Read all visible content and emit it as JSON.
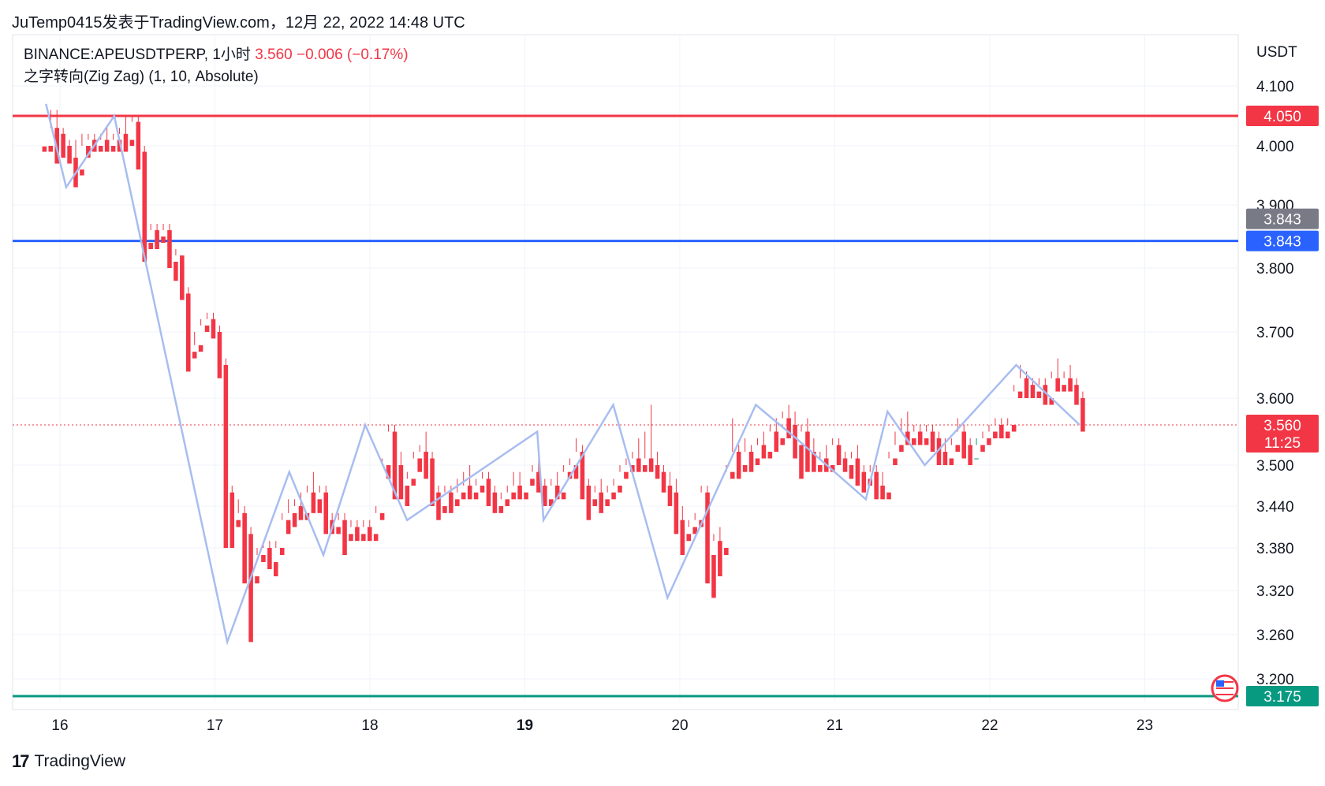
{
  "header": {
    "publisher": "JuTemp0415发表于TradingView.com，12月 22, 2022 14:48 UTC"
  },
  "legend": {
    "symbol": "BINANCE:APEUSDTPERP, 1小时",
    "price": "3.560",
    "change": "−0.006 (−0.17%)",
    "indicator": "之字转向(Zig Zag) (1, 10, Absolute)"
  },
  "footer": {
    "brand": "TradingView",
    "logo": "tradingview-logo-icon"
  },
  "colors": {
    "up": "#089981",
    "down": "#f23645",
    "zigzag": "#a8bdf0",
    "resistance": "#f23645",
    "support_blue": "#2962ff",
    "support_green": "#089981",
    "grid": "#f0f3fa"
  },
  "chart_data": {
    "type": "candlestick",
    "currency": "USDT",
    "x_labels": [
      "16",
      "17",
      "18",
      "19",
      "20",
      "21",
      "22",
      "23"
    ],
    "x_label_bold": "19",
    "y_ticks": [
      "4.100",
      "4.000",
      "3.900",
      "3.800",
      "3.700",
      "3.600",
      "3.500",
      "3.440",
      "3.380",
      "3.320",
      "3.260",
      "3.200"
    ],
    "y_scale": "log",
    "y_range": [
      3.175,
      4.15
    ],
    "horizontal_lines": [
      {
        "value": 4.05,
        "label": "4.050",
        "color": "#f23645"
      },
      {
        "value": 3.843,
        "label": "3.843",
        "color": "#2962ff"
      },
      {
        "value": 3.175,
        "label": "3.175",
        "color": "#089981"
      }
    ],
    "price_badges": [
      {
        "value": 3.843,
        "label": "3.843",
        "color": "#787b86"
      },
      {
        "value": 3.56,
        "label": "3.560",
        "countdown": "11:25",
        "color": "#f23645"
      }
    ],
    "current_price": 3.56,
    "zigzag": [
      [
        15.91,
        4.07
      ],
      [
        16.04,
        3.93
      ],
      [
        16.35,
        4.05
      ],
      [
        17.08,
        3.25
      ],
      [
        17.48,
        3.49
      ],
      [
        17.7,
        3.37
      ],
      [
        17.97,
        3.56
      ],
      [
        18.24,
        3.42
      ],
      [
        19.08,
        3.55
      ],
      [
        19.12,
        3.42
      ],
      [
        19.57,
        3.59
      ],
      [
        19.92,
        3.31
      ],
      [
        20.49,
        3.59
      ],
      [
        20.75,
        3.54
      ],
      [
        21.2,
        3.45
      ],
      [
        21.34,
        3.58
      ],
      [
        21.58,
        3.5
      ],
      [
        22.17,
        3.65
      ],
      [
        22.58,
        3.56
      ]
    ],
    "candles": [
      [
        3.999,
        4.0,
        4.0,
        3.99
      ],
      [
        4.0,
        4.06,
        4.03,
        3.99
      ],
      [
        4.03,
        4.06,
        4.02,
        3.97
      ],
      [
        4.02,
        4.03,
        4.0,
        3.98
      ],
      [
        4.0,
        4.01,
        3.98,
        3.97
      ],
      [
        3.98,
        4.01,
        3.96,
        3.93
      ],
      [
        3.96,
        4.02,
        4.0,
        3.95
      ],
      [
        4.0,
        4.02,
        4.01,
        3.98
      ],
      [
        4.01,
        4.02,
        4.0,
        3.99
      ],
      [
        4.0,
        4.02,
        4.01,
        3.99
      ],
      [
        4.01,
        4.03,
        4.0,
        3.99
      ],
      [
        4.0,
        4.02,
        4.01,
        3.99
      ],
      [
        4.01,
        4.03,
        4.02,
        3.99
      ],
      [
        4.02,
        4.05,
        4.01,
        3.99
      ],
      [
        4.01,
        4.05,
        4.04,
        4.0
      ],
      [
        4.04,
        4.05,
        3.99,
        3.96
      ],
      [
        3.99,
        4.0,
        3.84,
        3.81
      ],
      [
        3.84,
        3.87,
        3.86,
        3.83
      ],
      [
        3.86,
        3.87,
        3.85,
        3.83
      ],
      [
        3.85,
        3.87,
        3.86,
        3.84
      ],
      [
        3.86,
        3.87,
        3.81,
        3.8
      ],
      [
        3.81,
        3.83,
        3.82,
        3.78
      ],
      [
        3.82,
        3.82,
        3.76,
        3.75
      ],
      [
        3.76,
        3.77,
        3.67,
        3.64
      ],
      [
        3.67,
        3.7,
        3.68,
        3.66
      ],
      [
        3.68,
        3.72,
        3.71,
        3.67
      ],
      [
        3.71,
        3.73,
        3.72,
        3.7
      ],
      [
        3.72,
        3.73,
        3.7,
        3.69
      ],
      [
        3.7,
        3.71,
        3.65,
        3.63
      ],
      [
        3.65,
        3.66,
        3.46,
        3.38
      ],
      [
        3.46,
        3.47,
        3.42,
        3.38
      ],
      [
        3.42,
        3.45,
        3.43,
        3.41
      ],
      [
        3.43,
        3.44,
        3.4,
        3.33
      ],
      [
        3.4,
        3.41,
        3.34,
        3.25
      ],
      [
        3.34,
        3.38,
        3.37,
        3.33
      ],
      [
        3.37,
        3.39,
        3.38,
        3.36
      ],
      [
        3.38,
        3.39,
        3.36,
        3.35
      ],
      [
        3.36,
        3.39,
        3.38,
        3.34
      ],
      [
        3.38,
        3.43,
        3.42,
        3.37
      ],
      [
        3.42,
        3.45,
        3.43,
        3.4
      ],
      [
        3.43,
        3.45,
        3.44,
        3.41
      ],
      [
        3.44,
        3.46,
        3.43,
        3.42
      ],
      [
        3.43,
        3.47,
        3.46,
        3.42
      ],
      [
        3.46,
        3.49,
        3.45,
        3.43
      ],
      [
        3.45,
        3.47,
        3.46,
        3.43
      ],
      [
        3.46,
        3.47,
        3.42,
        3.4
      ],
      [
        3.42,
        3.43,
        3.41,
        3.4
      ],
      [
        3.41,
        3.43,
        3.42,
        3.4
      ],
      [
        3.42,
        3.43,
        3.4,
        3.37
      ],
      [
        3.4,
        3.42,
        3.41,
        3.39
      ],
      [
        3.41,
        3.42,
        3.4,
        3.39
      ],
      [
        3.4,
        3.42,
        3.41,
        3.39
      ],
      [
        3.41,
        3.42,
        3.4,
        3.39
      ],
      [
        3.4,
        3.44,
        3.43,
        3.39
      ],
      [
        3.43,
        3.51,
        3.5,
        3.42
      ],
      [
        3.5,
        3.56,
        3.55,
        3.48
      ],
      [
        3.55,
        3.56,
        3.5,
        3.45
      ],
      [
        3.5,
        3.52,
        3.47,
        3.45
      ],
      [
        3.47,
        3.49,
        3.48,
        3.44
      ],
      [
        3.48,
        3.52,
        3.51,
        3.47
      ],
      [
        3.51,
        3.53,
        3.52,
        3.49
      ],
      [
        3.52,
        3.55,
        3.51,
        3.48
      ],
      [
        3.51,
        3.52,
        3.46,
        3.44
      ],
      [
        3.46,
        3.47,
        3.44,
        3.42
      ],
      [
        3.44,
        3.47,
        3.46,
        3.43
      ],
      [
        3.46,
        3.47,
        3.45,
        3.43
      ],
      [
        3.45,
        3.48,
        3.46,
        3.44
      ],
      [
        3.46,
        3.49,
        3.47,
        3.45
      ],
      [
        3.47,
        3.5,
        3.46,
        3.45
      ],
      [
        3.46,
        3.48,
        3.47,
        3.45
      ],
      [
        3.47,
        3.49,
        3.48,
        3.46
      ],
      [
        3.48,
        3.49,
        3.46,
        3.44
      ],
      [
        3.46,
        3.47,
        3.44,
        3.43
      ],
      [
        3.44,
        3.46,
        3.45,
        3.43
      ],
      [
        3.45,
        3.47,
        3.46,
        3.44
      ],
      [
        3.46,
        3.49,
        3.47,
        3.45
      ],
      [
        3.47,
        3.49,
        3.46,
        3.45
      ],
      [
        3.46,
        3.48,
        3.48,
        3.45
      ],
      [
        3.48,
        3.5,
        3.49,
        3.47
      ],
      [
        3.49,
        3.51,
        3.47,
        3.46
      ],
      [
        3.47,
        3.48,
        3.45,
        3.44
      ],
      [
        3.45,
        3.48,
        3.47,
        3.44
      ],
      [
        3.47,
        3.49,
        3.46,
        3.45
      ],
      [
        3.46,
        3.5,
        3.49,
        3.45
      ],
      [
        3.49,
        3.51,
        3.5,
        3.48
      ],
      [
        3.5,
        3.54,
        3.52,
        3.48
      ],
      [
        3.52,
        3.53,
        3.47,
        3.45
      ],
      [
        3.47,
        3.48,
        3.45,
        3.42
      ],
      [
        3.45,
        3.47,
        3.46,
        3.44
      ],
      [
        3.46,
        3.48,
        3.45,
        3.43
      ],
      [
        3.45,
        3.47,
        3.46,
        3.44
      ],
      [
        3.46,
        3.48,
        3.47,
        3.45
      ],
      [
        3.47,
        3.5,
        3.49,
        3.46
      ],
      [
        3.49,
        3.51,
        3.5,
        3.48
      ],
      [
        3.5,
        3.52,
        3.51,
        3.49
      ],
      [
        3.51,
        3.54,
        3.5,
        3.49
      ],
      [
        3.5,
        3.55,
        3.51,
        3.49
      ],
      [
        3.51,
        3.59,
        3.5,
        3.49
      ],
      [
        3.5,
        3.52,
        3.49,
        3.48
      ],
      [
        3.49,
        3.5,
        3.47,
        3.46
      ],
      [
        3.47,
        3.49,
        3.46,
        3.44
      ],
      [
        3.46,
        3.48,
        3.42,
        3.4
      ],
      [
        3.42,
        3.44,
        3.4,
        3.37
      ],
      [
        3.4,
        3.42,
        3.41,
        3.39
      ],
      [
        3.41,
        3.43,
        3.42,
        3.4
      ],
      [
        3.42,
        3.47,
        3.46,
        3.41
      ],
      [
        3.46,
        3.47,
        3.37,
        3.33
      ],
      [
        3.37,
        3.4,
        3.39,
        3.31
      ],
      [
        3.39,
        3.41,
        3.38,
        3.34
      ],
      [
        3.38,
        3.5,
        3.49,
        3.37
      ],
      [
        3.49,
        3.57,
        3.52,
        3.48
      ],
      [
        3.52,
        3.53,
        3.5,
        3.48
      ],
      [
        3.5,
        3.54,
        3.52,
        3.49
      ],
      [
        3.52,
        3.53,
        3.51,
        3.49
      ],
      [
        3.51,
        3.54,
        3.53,
        3.5
      ],
      [
        3.53,
        3.55,
        3.52,
        3.51
      ],
      [
        3.52,
        3.56,
        3.55,
        3.51
      ],
      [
        3.55,
        3.57,
        3.54,
        3.52
      ],
      [
        3.54,
        3.58,
        3.57,
        3.53
      ],
      [
        3.57,
        3.59,
        3.56,
        3.54
      ],
      [
        3.56,
        3.58,
        3.53,
        3.51
      ],
      [
        3.53,
        3.56,
        3.55,
        3.48
      ],
      [
        3.55,
        3.57,
        3.52,
        3.49
      ],
      [
        3.52,
        3.54,
        3.5,
        3.49
      ],
      [
        3.5,
        3.52,
        3.51,
        3.49
      ],
      [
        3.51,
        3.53,
        3.5,
        3.49
      ],
      [
        3.5,
        3.54,
        3.53,
        3.49
      ],
      [
        3.53,
        3.54,
        3.51,
        3.5
      ],
      [
        3.51,
        3.52,
        3.5,
        3.49
      ],
      [
        3.5,
        3.52,
        3.51,
        3.48
      ],
      [
        3.51,
        3.53,
        3.49,
        3.47
      ],
      [
        3.49,
        3.5,
        3.48,
        3.46
      ],
      [
        3.48,
        3.5,
        3.49,
        3.47
      ],
      [
        3.49,
        3.5,
        3.47,
        3.45
      ],
      [
        3.47,
        3.49,
        3.46,
        3.45
      ],
      [
        3.46,
        3.52,
        3.51,
        3.45
      ],
      [
        3.51,
        3.55,
        3.53,
        3.5
      ],
      [
        3.53,
        3.57,
        3.55,
        3.52
      ],
      [
        3.55,
        3.58,
        3.54,
        3.53
      ],
      [
        3.54,
        3.56,
        3.55,
        3.53
      ],
      [
        3.55,
        3.56,
        3.54,
        3.53
      ],
      [
        3.54,
        3.56,
        3.55,
        3.53
      ],
      [
        3.55,
        3.56,
        3.54,
        3.52
      ],
      [
        3.54,
        3.55,
        3.52,
        3.5
      ],
      [
        3.52,
        3.54,
        3.51,
        3.5
      ],
      [
        3.51,
        3.54,
        3.53,
        3.5
      ],
      [
        3.53,
        3.57,
        3.55,
        3.52
      ],
      [
        3.55,
        3.56,
        3.53,
        3.51
      ],
      [
        3.53,
        3.54,
        3.51,
        3.5
      ],
      [
        3.51,
        3.54,
        3.53,
        3.51
      ],
      [
        3.53,
        3.55,
        3.54,
        3.52
      ],
      [
        3.54,
        3.56,
        3.55,
        3.53
      ],
      [
        3.55,
        3.57,
        3.56,
        3.54
      ],
      [
        3.56,
        3.57,
        3.55,
        3.54
      ],
      [
        3.55,
        3.57,
        3.56,
        3.54
      ],
      [
        3.56,
        3.62,
        3.61,
        3.55
      ],
      [
        3.61,
        3.65,
        3.63,
        3.6
      ],
      [
        3.63,
        3.64,
        3.62,
        3.6
      ],
      [
        3.62,
        3.63,
        3.61,
        3.6
      ],
      [
        3.61,
        3.63,
        3.62,
        3.6
      ],
      [
        3.62,
        3.63,
        3.6,
        3.59
      ],
      [
        3.6,
        3.64,
        3.63,
        3.59
      ],
      [
        3.63,
        3.66,
        3.62,
        3.61
      ],
      [
        3.62,
        3.64,
        3.63,
        3.61
      ],
      [
        3.63,
        3.65,
        3.62,
        3.61
      ],
      [
        3.62,
        3.63,
        3.6,
        3.59
      ],
      [
        3.6,
        3.61,
        3.56,
        3.55
      ]
    ],
    "x_start": 15.9,
    "x_end": 22.6
  }
}
